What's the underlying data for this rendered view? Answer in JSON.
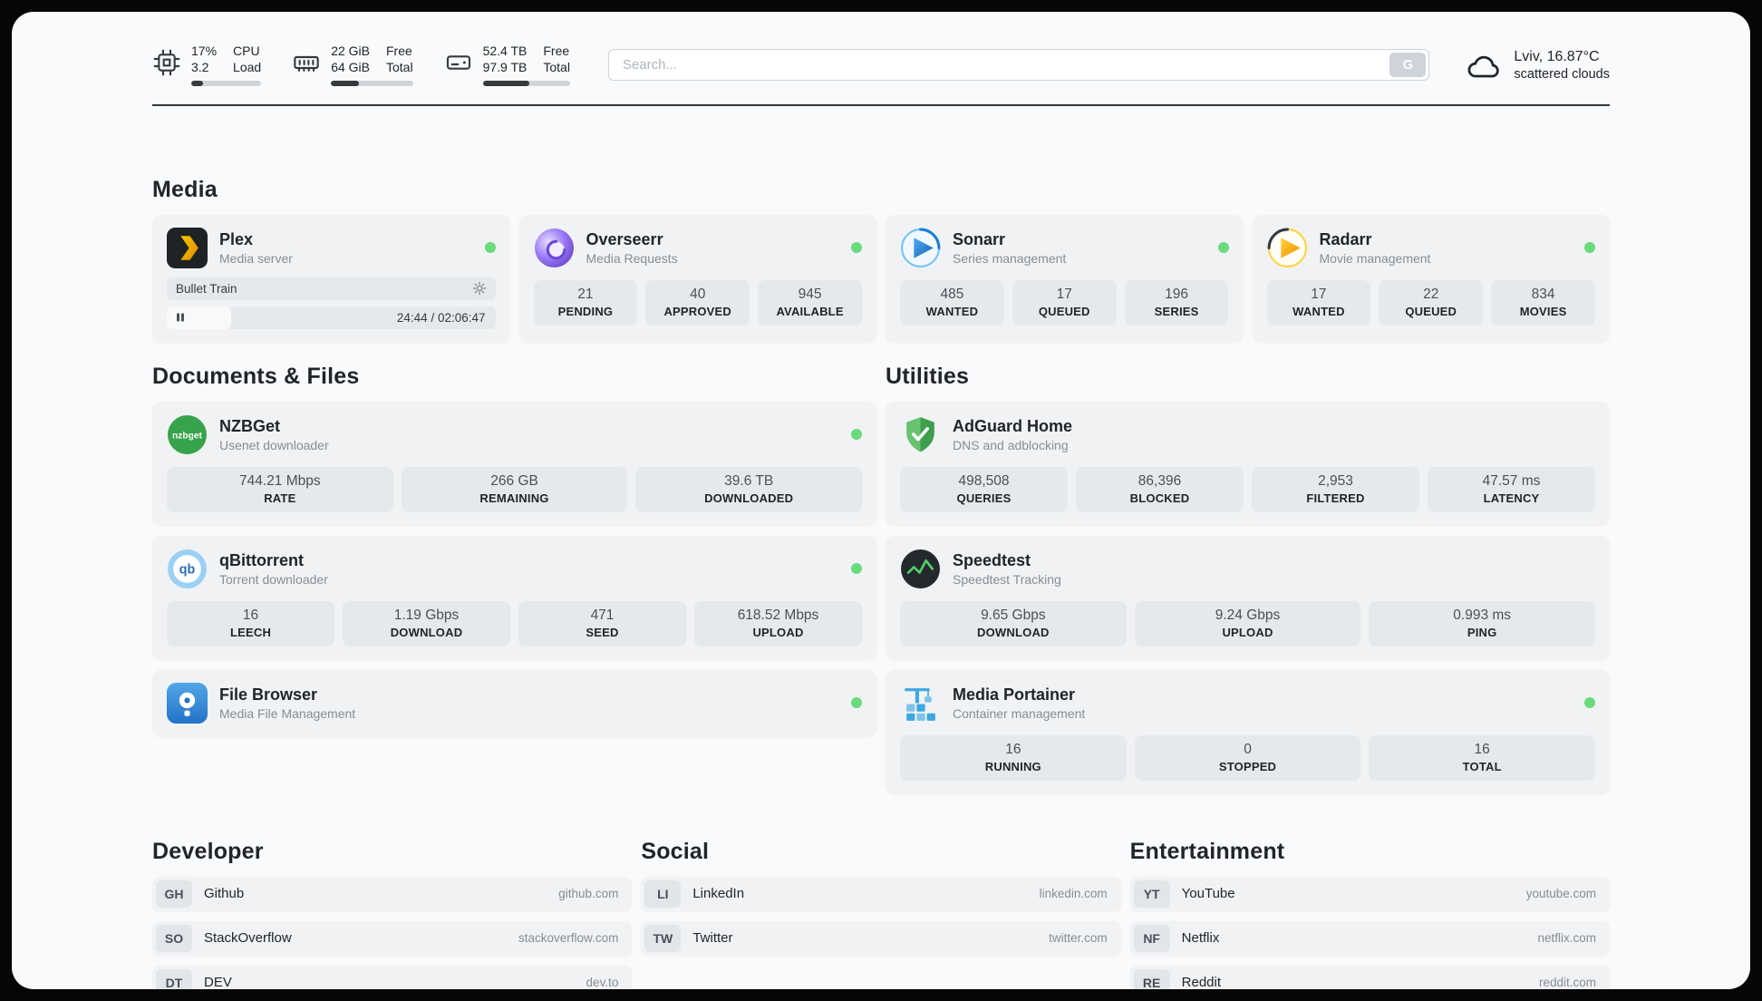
{
  "header": {
    "cpu": {
      "percent": "17%",
      "load": "3.2",
      "label_top": "CPU",
      "label_bottom": "Load",
      "bar_percent": 17
    },
    "ram": {
      "free": "22 GiB",
      "total": "64 GiB",
      "label_top": "Free",
      "label_bottom": "Total",
      "bar_percent": 34
    },
    "disk": {
      "free": "52.4 TB",
      "total": "97.9 TB",
      "label_top": "Free",
      "label_bottom": "Total",
      "bar_percent": 53
    },
    "search": {
      "placeholder": "Search...",
      "button_label": "G"
    },
    "weather": {
      "location": "Lviv, 16.87°C",
      "condition": "scattered clouds"
    }
  },
  "media": {
    "title": "Media",
    "plex": {
      "name": "Plex",
      "subtitle": "Media server",
      "now_playing": "Bullet Train",
      "time_display": "24:44 / 02:06:47",
      "progress_percent": 19.5
    },
    "overseerr": {
      "name": "Overseerr",
      "subtitle": "Media Requests",
      "stats": [
        {
          "value": "21",
          "label": "PENDING"
        },
        {
          "value": "40",
          "label": "APPROVED"
        },
        {
          "value": "945",
          "label": "AVAILABLE"
        }
      ]
    },
    "sonarr": {
      "name": "Sonarr",
      "subtitle": "Series management",
      "stats": [
        {
          "value": "485",
          "label": "WANTED"
        },
        {
          "value": "17",
          "label": "QUEUED"
        },
        {
          "value": "196",
          "label": "SERIES"
        }
      ]
    },
    "radarr": {
      "name": "Radarr",
      "subtitle": "Movie management",
      "stats": [
        {
          "value": "17",
          "label": "WANTED"
        },
        {
          "value": "22",
          "label": "QUEUED"
        },
        {
          "value": "834",
          "label": "MOVIES"
        }
      ]
    }
  },
  "documents": {
    "title": "Documents & Files",
    "nzbget": {
      "name": "NZBGet",
      "subtitle": "Usenet downloader",
      "stats": [
        {
          "value": "744.21 Mbps",
          "label": "RATE"
        },
        {
          "value": "266 GB",
          "label": "REMAINING"
        },
        {
          "value": "39.6 TB",
          "label": "DOWNLOADED"
        }
      ]
    },
    "qbittorrent": {
      "name": "qBittorrent",
      "subtitle": "Torrent downloader",
      "stats": [
        {
          "value": "16",
          "label": "LEECH"
        },
        {
          "value": "1.19 Gbps",
          "label": "DOWNLOAD"
        },
        {
          "value": "471",
          "label": "SEED"
        },
        {
          "value": "618.52 Mbps",
          "label": "UPLOAD"
        }
      ]
    },
    "filebrowser": {
      "name": "File Browser",
      "subtitle": "Media File Management"
    }
  },
  "utilities": {
    "title": "Utilities",
    "adguard": {
      "name": "AdGuard Home",
      "subtitle": "DNS and adblocking",
      "stats": [
        {
          "value": "498,508",
          "label": "QUERIES"
        },
        {
          "value": "86,396",
          "label": "BLOCKED"
        },
        {
          "value": "2,953",
          "label": "FILTERED"
        },
        {
          "value": "47.57 ms",
          "label": "LATENCY"
        }
      ]
    },
    "speedtest": {
      "name": "Speedtest",
      "subtitle": "Speedtest Tracking",
      "stats": [
        {
          "value": "9.65 Gbps",
          "label": "DOWNLOAD"
        },
        {
          "value": "9.24 Gbps",
          "label": "UPLOAD"
        },
        {
          "value": "0.993 ms",
          "label": "PING"
        }
      ]
    },
    "portainer": {
      "name": "Media Portainer",
      "subtitle": "Container management",
      "stats": [
        {
          "value": "16",
          "label": "RUNNING"
        },
        {
          "value": "0",
          "label": "STOPPED"
        },
        {
          "value": "16",
          "label": "TOTAL"
        }
      ]
    }
  },
  "bookmarks": {
    "developer": {
      "title": "Developer",
      "items": [
        {
          "abbr": "GH",
          "name": "Github",
          "url": "github.com"
        },
        {
          "abbr": "SO",
          "name": "StackOverflow",
          "url": "stackoverflow.com"
        },
        {
          "abbr": "DT",
          "name": "DEV",
          "url": "dev.to"
        }
      ]
    },
    "social": {
      "title": "Social",
      "items": [
        {
          "abbr": "LI",
          "name": "LinkedIn",
          "url": "linkedin.com"
        },
        {
          "abbr": "TW",
          "name": "Twitter",
          "url": "twitter.com"
        }
      ]
    },
    "entertainment": {
      "title": "Entertainment",
      "items": [
        {
          "abbr": "YT",
          "name": "YouTube",
          "url": "youtube.com"
        },
        {
          "abbr": "NF",
          "name": "Netflix",
          "url": "netflix.com"
        },
        {
          "abbr": "RE",
          "name": "Reddit",
          "url": "reddit.com"
        }
      ]
    }
  },
  "theme": {
    "status_dot_color": "#69db7c",
    "page_background": "#f9fafb",
    "card_background": "#f0f2f4",
    "tile_background": "#e6e9ec"
  },
  "icons": {
    "cpu": "cpu-chip-icon",
    "memory": "ram-icon",
    "disk": "hard-drive-icon",
    "weather": "cloud-icon",
    "search_engine": "google-g-button",
    "plex_row_action": "gear-icon",
    "plex_playback": "pause-icon"
  }
}
